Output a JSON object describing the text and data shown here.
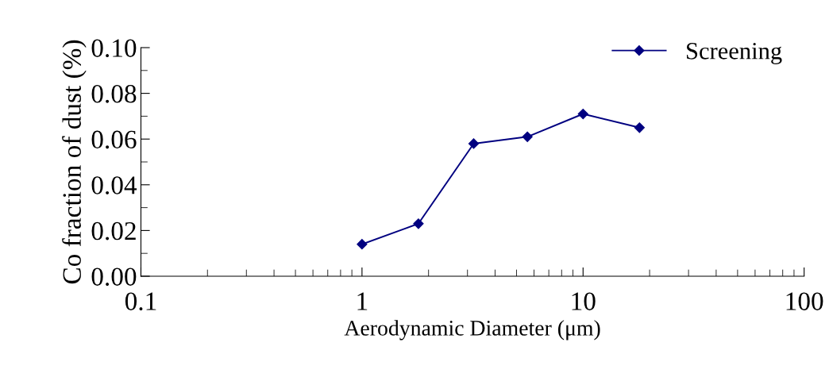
{
  "chart_data": {
    "type": "line",
    "xlabel": "Aerodynamic Diameter (μm)",
    "ylabel": "Co fraction of dust (%)",
    "x": [
      1,
      1.8,
      3.2,
      5.6,
      10,
      18
    ],
    "series": [
      {
        "name": "Screening",
        "color": "#000080",
        "values": [
          0.014,
          0.023,
          0.058,
          0.061,
          0.071,
          0.065
        ]
      }
    ],
    "log": "x",
    "xlim": [
      0.1,
      100
    ],
    "xticks": [
      0.1,
      1,
      10,
      100
    ],
    "ylim": [
      0,
      0.1
    ],
    "yticks": [
      {
        "value": 0,
        "label": "0.00"
      },
      {
        "value": 0.02,
        "label": "0.02"
      },
      {
        "value": 0.04,
        "label": "0.04"
      },
      {
        "value": 0.06,
        "label": "0.06"
      },
      {
        "value": 0.08,
        "label": "0.08"
      },
      {
        "value": 0.1,
        "label": "0.10"
      }
    ],
    "grid": false,
    "legend": "top right",
    "marker": "diamond",
    "line_style": "solid"
  }
}
